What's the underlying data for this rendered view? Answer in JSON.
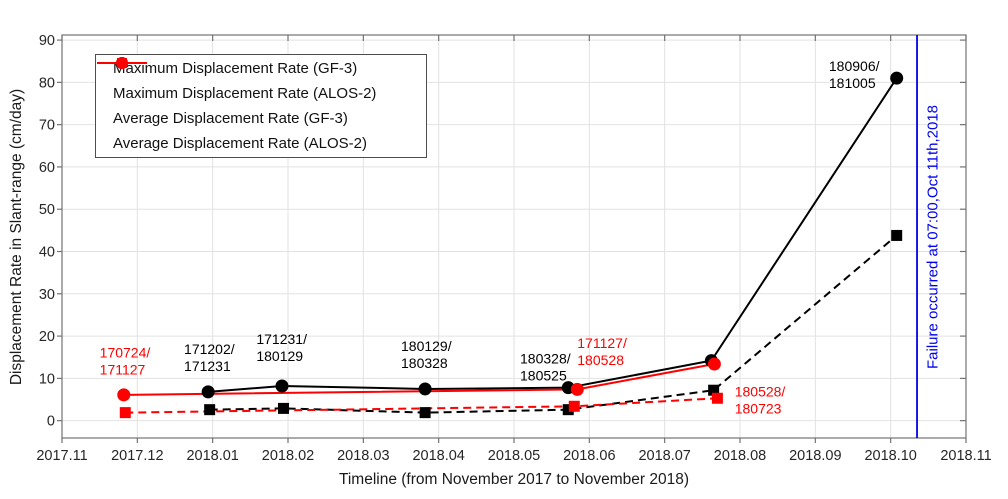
{
  "chart_data": {
    "type": "line",
    "title": "",
    "xlabel": "Timeline (from November 2017 to November 2018)",
    "ylabel": "Displacement Rate in Slant-range (cm/day)",
    "x_tick_labels": [
      "2017.11",
      "2017.12",
      "2018.01",
      "2018.02",
      "2018.03",
      "2018.04",
      "2018.05",
      "2018.06",
      "2018.07",
      "2018.08",
      "2018.09",
      "2018.10",
      "2018.11"
    ],
    "y_ticks": [
      0,
      10,
      20,
      30,
      40,
      50,
      60,
      70,
      80,
      90
    ],
    "xlim_month_index": [
      0,
      12
    ],
    "ylim": [
      -4.1,
      91.2
    ],
    "grid": true,
    "legend_position": "top-left",
    "colors": {
      "gf3": "#000000",
      "alos2": "#fe0000",
      "failure": "#0000ee",
      "gridline": "#e2e2e2",
      "axis": "#737373",
      "tick_text": "#262626"
    },
    "series": [
      {
        "name": "Maximum Displacement Rate (GF-3)",
        "color": "#000000",
        "line_style": "solid",
        "marker": "circle",
        "x": [
          1.94,
          2.92,
          4.82,
          6.72,
          8.62,
          11.08
        ],
        "y": [
          6.8,
          8.2,
          7.5,
          7.8,
          14.2,
          81.0
        ]
      },
      {
        "name": "Maximum Displacement Rate (ALOS-2)",
        "color": "#fe0000",
        "line_style": "solid",
        "marker": "circle",
        "x": [
          0.82,
          6.84,
          8.66
        ],
        "y": [
          6.1,
          7.4,
          13.4
        ]
      },
      {
        "name": "Average Displacement Rate (GF-3)",
        "color": "#000000",
        "line_style": "dashed",
        "marker": "square",
        "x": [
          1.96,
          2.94,
          4.82,
          6.72,
          8.65,
          11.08
        ],
        "y": [
          2.6,
          2.9,
          1.9,
          2.6,
          7.2,
          43.8
        ]
      },
      {
        "name": "Average Displacement Rate (ALOS-2)",
        "color": "#fe0000",
        "line_style": "dashed",
        "marker": "square",
        "x": [
          0.84,
          6.8,
          8.7
        ],
        "y": [
          1.9,
          3.4,
          5.3
        ]
      }
    ],
    "annotations": [
      {
        "lines": [
          "170724/",
          "171127"
        ],
        "color": "#fe0000",
        "x": 0.5,
        "y": 18.0
      },
      {
        "lines": [
          "171202/",
          "171231"
        ],
        "color": "#000000",
        "x": 1.62,
        "y": 18.8
      },
      {
        "lines": [
          "171231/",
          "180129"
        ],
        "color": "#000000",
        "x": 2.58,
        "y": 21.2
      },
      {
        "lines": [
          "180129/",
          "180328"
        ],
        "color": "#000000",
        "x": 4.5,
        "y": 19.5
      },
      {
        "lines": [
          "180328/",
          "180525"
        ],
        "color": "#000000",
        "x": 6.08,
        "y": 16.6
      },
      {
        "lines": [
          "171127/",
          "180528"
        ],
        "color": "#fe0000",
        "x": 6.84,
        "y": 20.2
      },
      {
        "lines": [
          "180528/",
          "180723"
        ],
        "color": "#fe0000",
        "x": 8.93,
        "y": 8.8
      },
      {
        "lines": [
          "180906/",
          "181005"
        ],
        "color": "#000000",
        "x": 10.18,
        "y": 85.8
      }
    ],
    "failure_line": {
      "x": 11.35,
      "color": "#0000ee",
      "label": "Failure occurred at 07:00,Oct 11th,2018"
    }
  }
}
